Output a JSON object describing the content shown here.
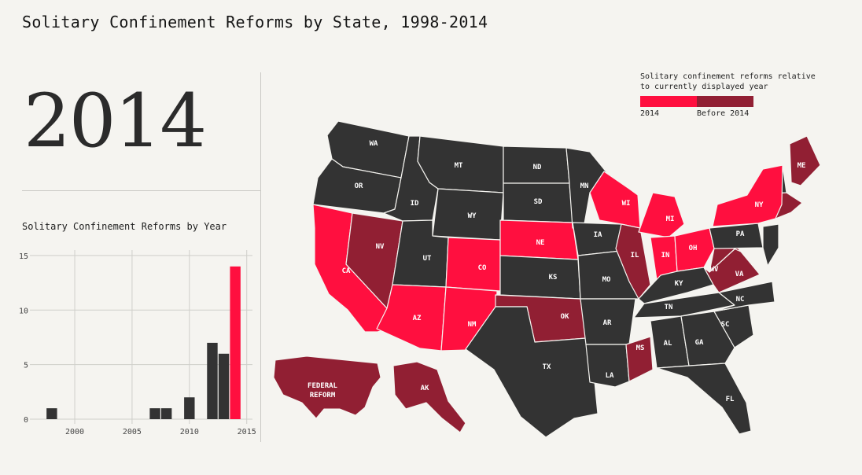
{
  "title": "Solitary Confinement Reforms by State, 1998-2014",
  "current_year": "2014",
  "chart_title": "Solitary Confinement Reforms by Year",
  "colors": {
    "current": "#ff0f3f",
    "before": "#911f33",
    "none": "#333333",
    "background": "#f5f4f0"
  },
  "legend": {
    "title_line1": "Solitary confinement reforms relative",
    "title_line2": "to currently displayed year",
    "current_label": "2014",
    "before_label": "Before 2014"
  },
  "chart_data": {
    "type": "bar",
    "x": [
      1998,
      1999,
      2000,
      2001,
      2002,
      2003,
      2004,
      2005,
      2006,
      2007,
      2008,
      2009,
      2010,
      2011,
      2012,
      2013,
      2014
    ],
    "values": [
      1,
      0,
      0,
      0,
      0,
      0,
      0,
      0,
      0,
      1,
      1,
      0,
      2,
      0,
      7,
      6,
      14
    ],
    "highlight_x": 2014,
    "xticks": [
      2000,
      2005,
      2010,
      2015
    ],
    "yticks": [
      0,
      5,
      10,
      15
    ],
    "xlim": [
      1996.5,
      2015.5
    ],
    "ylim": [
      0,
      15.5
    ],
    "grid": true
  },
  "map": {
    "states": [
      {
        "abbr": "WA",
        "status": "none"
      },
      {
        "abbr": "OR",
        "status": "none"
      },
      {
        "abbr": "CA",
        "status": "current"
      },
      {
        "abbr": "NV",
        "status": "before"
      },
      {
        "abbr": "ID",
        "status": "none"
      },
      {
        "abbr": "MT",
        "status": "none"
      },
      {
        "abbr": "WY",
        "status": "none"
      },
      {
        "abbr": "UT",
        "status": "none"
      },
      {
        "abbr": "AZ",
        "status": "current"
      },
      {
        "abbr": "CO",
        "status": "current"
      },
      {
        "abbr": "NM",
        "status": "current"
      },
      {
        "abbr": "ND",
        "status": "none"
      },
      {
        "abbr": "SD",
        "status": "none"
      },
      {
        "abbr": "NE",
        "status": "current"
      },
      {
        "abbr": "KS",
        "status": "none"
      },
      {
        "abbr": "OK",
        "status": "before"
      },
      {
        "abbr": "TX",
        "status": "none"
      },
      {
        "abbr": "MN",
        "status": "none"
      },
      {
        "abbr": "IA",
        "status": "none"
      },
      {
        "abbr": "MO",
        "status": "none"
      },
      {
        "abbr": "AR",
        "status": "none"
      },
      {
        "abbr": "LA",
        "status": "none"
      },
      {
        "abbr": "WI",
        "status": "current"
      },
      {
        "abbr": "IL",
        "status": "before"
      },
      {
        "abbr": "MS",
        "status": "before"
      },
      {
        "abbr": "MI",
        "status": "current"
      },
      {
        "abbr": "IN",
        "status": "current"
      },
      {
        "abbr": "OH",
        "status": "current"
      },
      {
        "abbr": "KY",
        "status": "none"
      },
      {
        "abbr": "TN",
        "status": "none"
      },
      {
        "abbr": "AL",
        "status": "none"
      },
      {
        "abbr": "GA",
        "status": "none"
      },
      {
        "abbr": "FL",
        "status": "none"
      },
      {
        "abbr": "SC",
        "status": "none"
      },
      {
        "abbr": "NC",
        "status": "none"
      },
      {
        "abbr": "VA",
        "status": "before"
      },
      {
        "abbr": "WV",
        "status": "before"
      },
      {
        "abbr": "PA",
        "status": "none"
      },
      {
        "abbr": "NY",
        "status": "current"
      },
      {
        "abbr": "ME",
        "status": "before"
      },
      {
        "abbr": "AK",
        "status": "before"
      }
    ],
    "federal_label_line1": "FEDERAL",
    "federal_label_line2": "REFORM",
    "federal_status": "before"
  }
}
